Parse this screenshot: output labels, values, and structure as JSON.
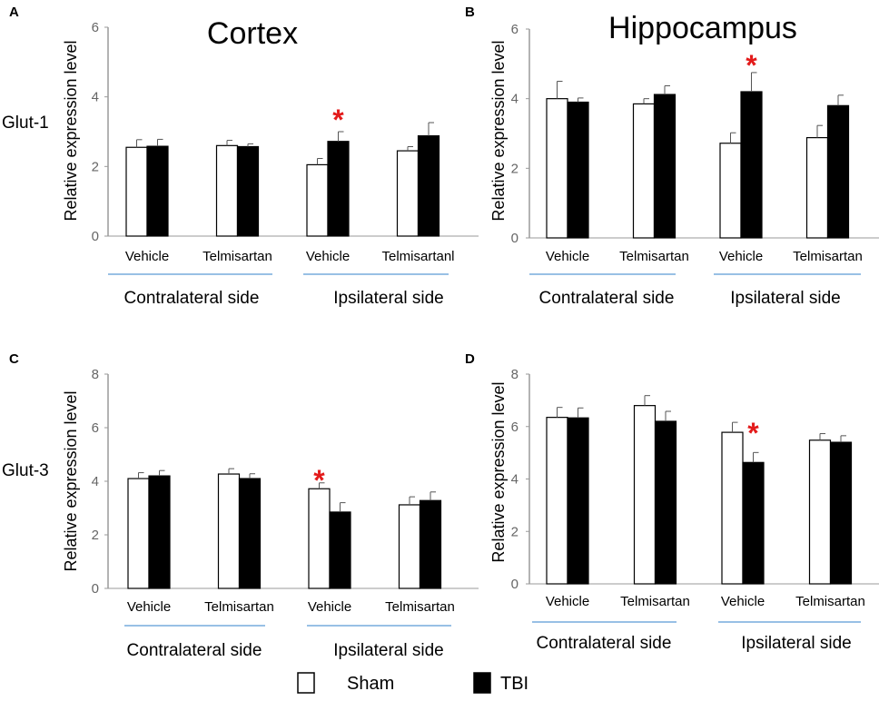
{
  "colors": {
    "sham": "#ffffff",
    "tbi": "#000000",
    "significance": "#e31b1b",
    "group_line": "#5b9bd5",
    "axis": "#9a9a9a"
  },
  "legend": {
    "sham_label": "Sham",
    "tbi_label": "TBI"
  },
  "row_labels": [
    "Glut-1",
    "Glut-3"
  ],
  "chart_data": [
    {
      "type": "bar",
      "panel": "A",
      "title": "Cortex",
      "ylabel": "Relative expression level",
      "ylim": [
        0,
        6
      ],
      "yticks": [
        0,
        2,
        4,
        6
      ],
      "categories": [
        "Vehicle",
        "Telmisartan",
        "Vehicle",
        "Telmisartanl"
      ],
      "groups": [
        "Contralateral side",
        "Ipsilateral side"
      ],
      "series": [
        {
          "name": "Sham",
          "values": [
            2.55,
            2.6,
            2.05,
            2.45
          ],
          "errors": [
            0.22,
            0.15,
            0.18,
            0.12
          ]
        },
        {
          "name": "TBI",
          "values": [
            2.58,
            2.57,
            2.72,
            2.88
          ],
          "errors": [
            0.2,
            0.08,
            0.28,
            0.38
          ]
        }
      ],
      "significance": [
        {
          "category_index": 2,
          "series": "TBI",
          "label": "*"
        }
      ]
    },
    {
      "type": "bar",
      "panel": "B",
      "title": "Hippocampus",
      "ylabel": "Relative expression level",
      "ylim": [
        0,
        6
      ],
      "yticks": [
        0,
        2,
        4,
        6
      ],
      "categories": [
        "Vehicle",
        "Telmisartan",
        "Vehicle",
        "Telmisartan"
      ],
      "groups": [
        "Contralateral side",
        "Ipsilateral side"
      ],
      "series": [
        {
          "name": "Sham",
          "values": [
            4.0,
            3.85,
            2.72,
            2.88
          ],
          "errors": [
            0.5,
            0.15,
            0.3,
            0.35
          ]
        },
        {
          "name": "TBI",
          "values": [
            3.9,
            4.12,
            4.2,
            3.8
          ],
          "errors": [
            0.12,
            0.25,
            0.55,
            0.3
          ]
        }
      ],
      "significance": [
        {
          "category_index": 2,
          "series": "TBI",
          "label": "*"
        }
      ]
    },
    {
      "type": "bar",
      "panel": "C",
      "title": "",
      "ylabel": "Relative expression level",
      "ylim": [
        0,
        8
      ],
      "yticks": [
        0,
        2,
        4,
        6,
        8
      ],
      "categories": [
        "Vehicle",
        "Telmisartan",
        "Vehicle",
        "Telmisartan"
      ],
      "groups": [
        "Contralateral side",
        "Ipsilateral side"
      ],
      "series": [
        {
          "name": "Sham",
          "values": [
            4.1,
            4.27,
            3.72,
            3.12
          ],
          "errors": [
            0.22,
            0.2,
            0.22,
            0.3
          ]
        },
        {
          "name": "TBI",
          "values": [
            4.2,
            4.1,
            2.85,
            3.28
          ],
          "errors": [
            0.2,
            0.18,
            0.35,
            0.32
          ]
        }
      ],
      "significance": [
        {
          "category_index": 2,
          "series": "Sham",
          "label": "*"
        }
      ]
    },
    {
      "type": "bar",
      "panel": "D",
      "title": "",
      "ylabel": "Relative expression level",
      "ylim": [
        0,
        8
      ],
      "yticks": [
        0,
        2,
        4,
        6,
        8
      ],
      "categories": [
        "Vehicle",
        "Telmisartan",
        "Vehicle",
        "Telmisartan"
      ],
      "groups": [
        "Contralateral side",
        "Ipsilateral side"
      ],
      "series": [
        {
          "name": "Sham",
          "values": [
            6.35,
            6.8,
            5.78,
            5.48
          ],
          "errors": [
            0.38,
            0.38,
            0.38,
            0.25
          ]
        },
        {
          "name": "TBI",
          "values": [
            6.33,
            6.2,
            4.63,
            5.4
          ],
          "errors": [
            0.38,
            0.38,
            0.38,
            0.25
          ]
        }
      ],
      "significance": [
        {
          "category_index": 2,
          "series": "TBI",
          "label": "*"
        }
      ]
    }
  ]
}
